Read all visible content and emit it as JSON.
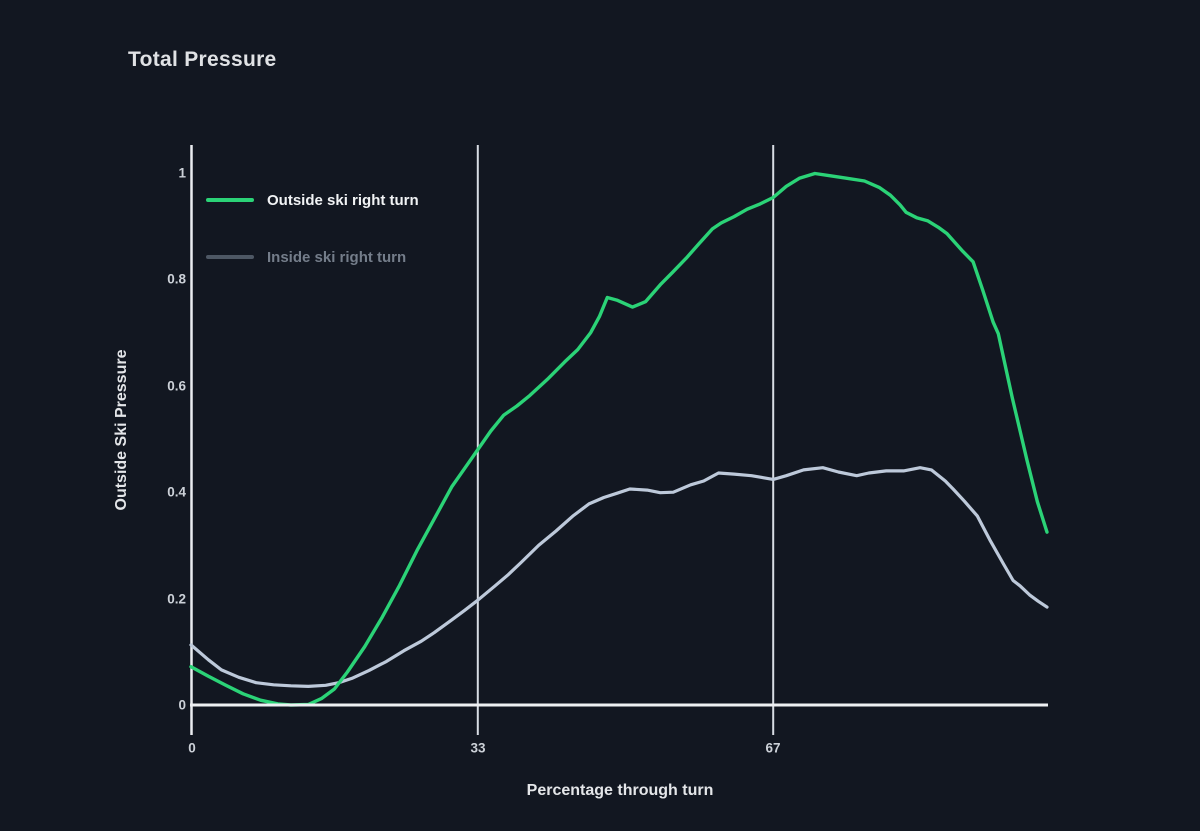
{
  "title": "Total Pressure",
  "colors": {
    "background": "#121721",
    "outside_series": "#2bd377",
    "inside_series": "#bdc9da",
    "inside_legend_swatch": "#4d5764",
    "inside_legend_text": "#747d8a",
    "outside_legend_text": "#f1f3f5",
    "axis_line": "#e9ecf0",
    "gridline": "#d7dce3",
    "tick_text": "#ccd1d8",
    "title_text": "#e0e2e5"
  },
  "legend": {
    "items": [
      {
        "label": "Outside ski right turn"
      },
      {
        "label": "Inside ski right turn"
      }
    ]
  },
  "chart_data": {
    "type": "line",
    "title": "Total Pressure",
    "xlabel": "Percentage through turn",
    "ylabel": "Outside Ski Pressure",
    "xlim": [
      0,
      100
    ],
    "ylim": [
      0,
      1
    ],
    "xticks": [
      0,
      33,
      67
    ],
    "yticks": [
      1,
      0.8,
      0.6,
      0.4,
      0.2,
      0
    ],
    "grid": "vertical-gridlines-at-33-and-67-only",
    "legend_position": "top-left-inside",
    "series": [
      {
        "name": "Inside ski right turn",
        "color": "#bdc9da",
        "points": [
          [
            0,
            0.113
          ],
          [
            2,
            0.085
          ],
          [
            3.5,
            0.066
          ],
          [
            5.5,
            0.052
          ],
          [
            7.5,
            0.042
          ],
          [
            9.5,
            0.038
          ],
          [
            11.5,
            0.036
          ],
          [
            13.5,
            0.035
          ],
          [
            15.5,
            0.037
          ],
          [
            17,
            0.042
          ],
          [
            18.5,
            0.05
          ],
          [
            20.5,
            0.065
          ],
          [
            22.5,
            0.082
          ],
          [
            24.5,
            0.102
          ],
          [
            26.5,
            0.12
          ],
          [
            28,
            0.136
          ],
          [
            30,
            0.16
          ],
          [
            31.5,
            0.178
          ],
          [
            33,
            0.197
          ],
          [
            35,
            0.224
          ],
          [
            36.5,
            0.245
          ],
          [
            38,
            0.268
          ],
          [
            40,
            0.3
          ],
          [
            42,
            0.327
          ],
          [
            44,
            0.356
          ],
          [
            45.8,
            0.378
          ],
          [
            47.5,
            0.39
          ],
          [
            49,
            0.398
          ],
          [
            50.5,
            0.406
          ],
          [
            52.5,
            0.404
          ],
          [
            54,
            0.399
          ],
          [
            55.5,
            0.4
          ],
          [
            57.5,
            0.414
          ],
          [
            59,
            0.421
          ],
          [
            60.7,
            0.436
          ],
          [
            62.5,
            0.434
          ],
          [
            64.5,
            0.431
          ],
          [
            67,
            0.424
          ],
          [
            68.5,
            0.431
          ],
          [
            70.5,
            0.442
          ],
          [
            72.7,
            0.446
          ],
          [
            74.5,
            0.438
          ],
          [
            76.6,
            0.431
          ],
          [
            78,
            0.436
          ],
          [
            80,
            0.44
          ],
          [
            82,
            0.44
          ],
          [
            83.9,
            0.446
          ],
          [
            85.2,
            0.442
          ],
          [
            86.8,
            0.421
          ],
          [
            87.7,
            0.406
          ],
          [
            89,
            0.383
          ],
          [
            90.5,
            0.355
          ],
          [
            92,
            0.308
          ],
          [
            93.5,
            0.265
          ],
          [
            94.6,
            0.234
          ],
          [
            95.4,
            0.224
          ],
          [
            96.5,
            0.207
          ],
          [
            97.5,
            0.195
          ],
          [
            98.5,
            0.184
          ]
        ]
      },
      {
        "name": "Outside ski right turn",
        "color": "#2bd377",
        "points": [
          [
            0,
            0.072
          ],
          [
            2,
            0.054
          ],
          [
            4,
            0.037
          ],
          [
            6,
            0.021
          ],
          [
            8,
            0.009
          ],
          [
            10,
            0.002
          ],
          [
            11.5,
            0
          ],
          [
            13.5,
            0.001
          ],
          [
            15,
            0.012
          ],
          [
            16.5,
            0.03
          ],
          [
            18,
            0.062
          ],
          [
            20,
            0.11
          ],
          [
            22,
            0.165
          ],
          [
            24,
            0.225
          ],
          [
            26,
            0.29
          ],
          [
            28,
            0.35
          ],
          [
            30,
            0.41
          ],
          [
            31.5,
            0.445
          ],
          [
            33,
            0.48
          ],
          [
            34.5,
            0.515
          ],
          [
            36,
            0.545
          ],
          [
            37.5,
            0.562
          ],
          [
            39,
            0.582
          ],
          [
            41,
            0.612
          ],
          [
            43,
            0.645
          ],
          [
            44.5,
            0.668
          ],
          [
            46,
            0.7
          ],
          [
            47,
            0.73
          ],
          [
            47.9,
            0.766
          ],
          [
            49,
            0.761
          ],
          [
            50.8,
            0.748
          ],
          [
            52.3,
            0.758
          ],
          [
            54,
            0.79
          ],
          [
            55.4,
            0.813
          ],
          [
            57,
            0.84
          ],
          [
            58.5,
            0.868
          ],
          [
            60,
            0.895
          ],
          [
            61,
            0.906
          ],
          [
            62.5,
            0.918
          ],
          [
            64,
            0.932
          ],
          [
            65.5,
            0.942
          ],
          [
            67,
            0.954
          ],
          [
            68.5,
            0.975
          ],
          [
            70,
            0.99
          ],
          [
            71.8,
            0.999
          ],
          [
            73.5,
            0.995
          ],
          [
            75.5,
            0.99
          ],
          [
            77.5,
            0.985
          ],
          [
            79.2,
            0.973
          ],
          [
            80.5,
            0.958
          ],
          [
            81.6,
            0.94
          ],
          [
            82.3,
            0.926
          ],
          [
            83.5,
            0.916
          ],
          [
            84.8,
            0.91
          ],
          [
            86,
            0.898
          ],
          [
            87,
            0.886
          ],
          [
            88.8,
            0.853
          ],
          [
            90,
            0.833
          ],
          [
            91.1,
            0.78
          ],
          [
            92.3,
            0.72
          ],
          [
            92.9,
            0.698
          ],
          [
            94.5,
            0.578
          ],
          [
            96.2,
            0.46
          ],
          [
            97.4,
            0.382
          ],
          [
            98.5,
            0.325
          ]
        ]
      }
    ]
  }
}
